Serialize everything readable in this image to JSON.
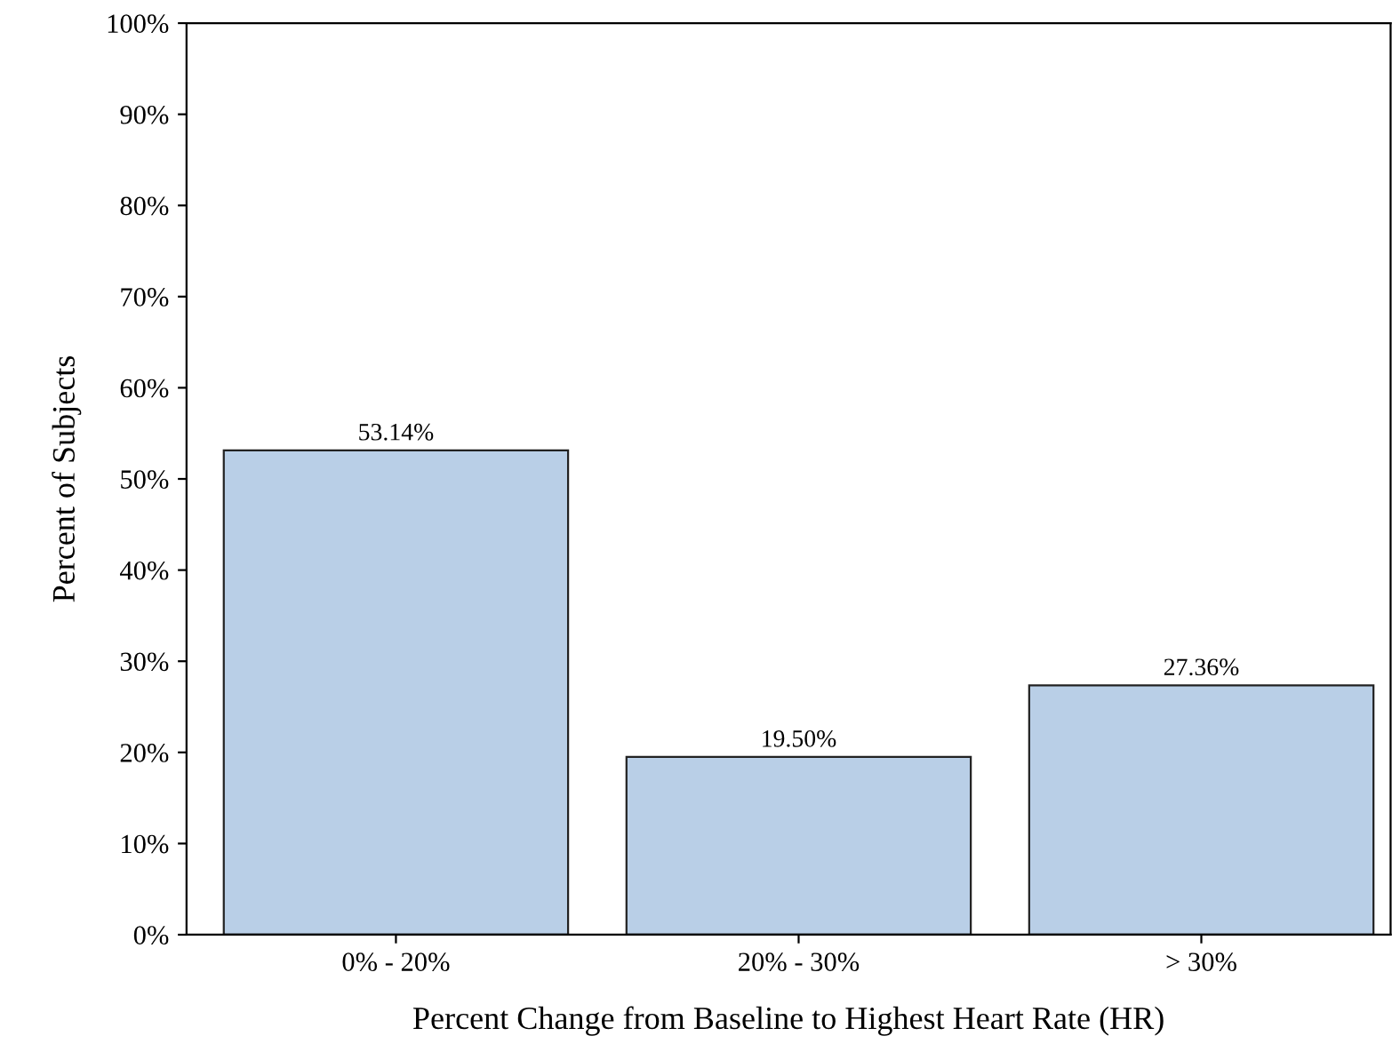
{
  "chart_data": {
    "type": "bar",
    "xlabel": "Percent Change from Baseline to Highest Heart Rate (HR)",
    "ylabel": "Percent of Subjects",
    "categories": [
      "0% - 20%",
      "20% - 30%",
      "> 30%"
    ],
    "values": [
      53.14,
      19.5,
      27.36
    ],
    "value_labels": [
      "53.14%",
      "19.50%",
      "27.36%"
    ],
    "color": "#b9cfe7",
    "ylim": [
      0,
      100
    ],
    "yticks": [
      {
        "value": 0,
        "label": "0%"
      },
      {
        "value": 10,
        "label": "10%"
      },
      {
        "value": 20,
        "label": "20%"
      },
      {
        "value": 30,
        "label": "30%"
      },
      {
        "value": 40,
        "label": "40%"
      },
      {
        "value": 50,
        "label": "50%"
      },
      {
        "value": 60,
        "label": "60%"
      },
      {
        "value": 70,
        "label": "70%"
      },
      {
        "value": 80,
        "label": "80%"
      },
      {
        "value": 90,
        "label": "90%"
      },
      {
        "value": 100,
        "label": "100%"
      }
    ],
    "grid": false,
    "legend": false
  }
}
